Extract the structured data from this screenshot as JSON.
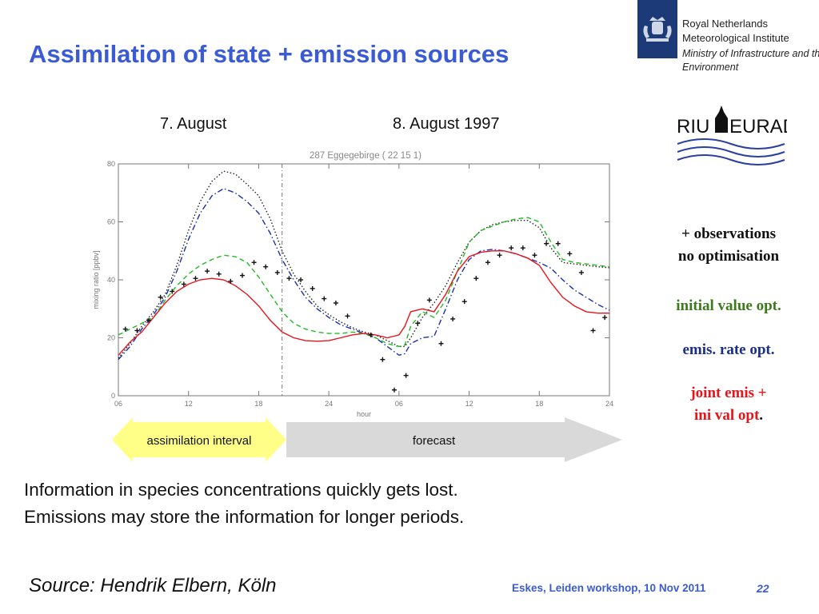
{
  "slide": {
    "title": "Assimilation of state + emission sources",
    "org_lines": [
      "Royal Netherlands",
      "Meteorological Institute"
    ],
    "ministry_lines": [
      "Ministry of Infrastructure and the",
      "Environment"
    ],
    "riu_logo_text": "RIU EURAD",
    "day_label_1": "7. August",
    "day_label_2": "8. August 1997",
    "arrow_assim": "assimilation interval",
    "arrow_forecast": "forecast",
    "body_line_1": "Information in species concentrations quickly gets lost.",
    "body_line_2": "Emissions may store the information for longer periods.",
    "source": "Source: Hendrik Elbern, Köln",
    "footer": "Eskes, Leiden workshop, 10 Nov 2011",
    "page": "22",
    "colors": {
      "accent": "#3a5bd3",
      "knmi_navy": "#1c3a78"
    }
  },
  "legend": {
    "obs_line_1": "+ observations",
    "obs_line_2": "no optimisation",
    "initial": "initial value opt.",
    "emis": "emis. rate opt.",
    "joint_1": "joint emis +",
    "joint_2": "ini val opt",
    "joint_dot": ".",
    "colors": {
      "obs": "#000000",
      "initial": "#3d7a1e",
      "emis": "#1a2f8a",
      "joint": "#e8141b"
    }
  },
  "chart_data": {
    "type": "line",
    "title": "287 Eggegebirge ( 22 15 1)",
    "xlabel": "hour",
    "ylabel": "mixing ratio [ppbv]",
    "xlim": [
      0,
      42
    ],
    "ylim": [
      0,
      80
    ],
    "x_ticks": [
      0,
      6,
      12,
      18,
      24,
      30,
      36,
      42
    ],
    "x_tick_labels": [
      "06",
      "12",
      "18",
      "24",
      "06",
      "12",
      "18",
      "24"
    ],
    "y_ticks": [
      0,
      20,
      40,
      60,
      80
    ],
    "y_tick_labels": [
      "0",
      "20",
      "40",
      "60",
      "80"
    ],
    "assimilation_end": 14,
    "series": [
      {
        "style": "dotted",
        "color": "#222222",
        "points": [
          [
            0,
            13
          ],
          [
            1,
            18
          ],
          [
            2,
            24
          ],
          [
            3,
            29
          ],
          [
            4,
            35
          ],
          [
            5,
            45
          ],
          [
            6,
            57
          ],
          [
            7,
            67
          ],
          [
            8,
            74
          ],
          [
            9,
            77.5
          ],
          [
            10,
            76.5
          ],
          [
            11,
            73
          ],
          [
            12,
            69
          ],
          [
            13,
            61
          ],
          [
            14,
            50
          ],
          [
            15,
            42
          ],
          [
            16,
            36
          ],
          [
            17,
            31
          ],
          [
            18,
            28
          ],
          [
            19,
            25.5
          ],
          [
            20,
            23.5
          ],
          [
            21,
            22
          ],
          [
            22,
            21
          ],
          [
            23,
            19
          ],
          [
            24,
            17
          ],
          [
            24.5,
            17
          ],
          [
            25,
            20
          ],
          [
            26,
            27
          ],
          [
            27,
            32
          ],
          [
            28,
            38
          ],
          [
            29,
            46
          ],
          [
            30,
            53
          ],
          [
            31,
            57
          ],
          [
            32,
            59
          ],
          [
            33,
            60
          ],
          [
            34,
            60.5
          ],
          [
            35,
            60.5
          ],
          [
            36,
            58
          ],
          [
            37,
            51
          ],
          [
            38,
            46
          ],
          [
            39,
            45.5
          ],
          [
            40,
            45
          ],
          [
            41,
            44.5
          ],
          [
            42,
            44.2
          ]
        ]
      },
      {
        "style": "dashdot",
        "color": "#1a2fb0",
        "points": [
          [
            0,
            12.5
          ],
          [
            1,
            17
          ],
          [
            2,
            23
          ],
          [
            3,
            28
          ],
          [
            4,
            34
          ],
          [
            5,
            43
          ],
          [
            6,
            54
          ],
          [
            7,
            63
          ],
          [
            8,
            69
          ],
          [
            9,
            71.5
          ],
          [
            10,
            70
          ],
          [
            11,
            67
          ],
          [
            12,
            63
          ],
          [
            13,
            56
          ],
          [
            14,
            47
          ],
          [
            15,
            40
          ],
          [
            16,
            34
          ],
          [
            17,
            30
          ],
          [
            18,
            27
          ],
          [
            19,
            24.5
          ],
          [
            20,
            23
          ],
          [
            21,
            21.5
          ],
          [
            22,
            20
          ],
          [
            23,
            17
          ],
          [
            24,
            14
          ],
          [
            24.5,
            14.5
          ],
          [
            25,
            18
          ],
          [
            26,
            20
          ],
          [
            27,
            20.5
          ],
          [
            28,
            30
          ],
          [
            29,
            40
          ],
          [
            30,
            47
          ],
          [
            31,
            50
          ],
          [
            32,
            50.5
          ],
          [
            33,
            50
          ],
          [
            34,
            49
          ],
          [
            35,
            47.5
          ],
          [
            36,
            46
          ],
          [
            37,
            44
          ],
          [
            38,
            40
          ],
          [
            39,
            36.5
          ],
          [
            40,
            34
          ],
          [
            41,
            31.5
          ],
          [
            42,
            29.5
          ]
        ]
      },
      {
        "style": "dashed",
        "color": "#22bb22",
        "points": [
          [
            0,
            21
          ],
          [
            1,
            23
          ],
          [
            2,
            25
          ],
          [
            3,
            27
          ],
          [
            4,
            33
          ],
          [
            5,
            38
          ],
          [
            6,
            42
          ],
          [
            7,
            45
          ],
          [
            8,
            47
          ],
          [
            9,
            48.5
          ],
          [
            10,
            48
          ],
          [
            11,
            46
          ],
          [
            12,
            41
          ],
          [
            13,
            35
          ],
          [
            14,
            29
          ],
          [
            15,
            25
          ],
          [
            16,
            23
          ],
          [
            17,
            22
          ],
          [
            18,
            21.5
          ],
          [
            19,
            21.5
          ],
          [
            20,
            22
          ],
          [
            21,
            21.5
          ],
          [
            22,
            20
          ],
          [
            23,
            18
          ],
          [
            24,
            17
          ],
          [
            24.5,
            17.5
          ],
          [
            25,
            24
          ],
          [
            26,
            29
          ],
          [
            27,
            27
          ],
          [
            28,
            33
          ],
          [
            29,
            43
          ],
          [
            30,
            53
          ],
          [
            31,
            57
          ],
          [
            32,
            58.5
          ],
          [
            33,
            60
          ],
          [
            34,
            61
          ],
          [
            35,
            61.5
          ],
          [
            36,
            60
          ],
          [
            37,
            53
          ],
          [
            38,
            47
          ],
          [
            39,
            46
          ],
          [
            40,
            45.5
          ],
          [
            41,
            45
          ],
          [
            42,
            44.5
          ]
        ]
      },
      {
        "style": "solid",
        "color": "#e8141b",
        "points": [
          [
            0,
            14
          ],
          [
            1,
            18.5
          ],
          [
            2,
            22
          ],
          [
            3,
            27
          ],
          [
            4,
            32
          ],
          [
            5,
            36
          ],
          [
            6,
            38.5
          ],
          [
            7,
            40
          ],
          [
            8,
            40.5
          ],
          [
            9,
            40
          ],
          [
            10,
            38
          ],
          [
            11,
            35
          ],
          [
            12,
            31
          ],
          [
            13,
            26
          ],
          [
            14,
            22
          ],
          [
            15,
            20
          ],
          [
            16,
            19
          ],
          [
            17,
            18.8
          ],
          [
            18,
            19
          ],
          [
            19,
            20
          ],
          [
            20,
            21
          ],
          [
            21,
            21.5
          ],
          [
            22,
            21
          ],
          [
            23,
            20
          ],
          [
            24,
            21
          ],
          [
            24.5,
            24
          ],
          [
            25,
            29
          ],
          [
            26,
            30
          ],
          [
            27,
            29
          ],
          [
            28,
            35
          ],
          [
            29,
            43
          ],
          [
            30,
            48
          ],
          [
            31,
            49.5
          ],
          [
            32,
            50
          ],
          [
            33,
            50
          ],
          [
            34,
            49
          ],
          [
            35,
            47.5
          ],
          [
            36,
            45
          ],
          [
            37,
            39
          ],
          [
            38,
            34
          ],
          [
            39,
            31
          ],
          [
            40,
            29
          ],
          [
            41,
            28.5
          ],
          [
            42,
            28.5
          ]
        ]
      }
    ],
    "observations": [
      [
        0.6,
        23
      ],
      [
        1.6,
        22.5
      ],
      [
        2.6,
        26
      ],
      [
        3.6,
        34
      ],
      [
        4.6,
        36
      ],
      [
        5.6,
        38.5
      ],
      [
        6.6,
        40.5
      ],
      [
        7.6,
        43
      ],
      [
        8.6,
        42
      ],
      [
        9.6,
        39.5
      ],
      [
        10.6,
        41.5
      ],
      [
        11.6,
        46
      ],
      [
        12.6,
        44.5
      ],
      [
        13.6,
        42.5
      ],
      [
        14.6,
        40.5
      ],
      [
        15.6,
        40
      ],
      [
        16.6,
        37
      ],
      [
        17.6,
        33.5
      ],
      [
        18.6,
        32
      ],
      [
        19.6,
        27.5
      ],
      [
        21.6,
        21
      ],
      [
        22.6,
        12.5
      ],
      [
        23.6,
        2
      ],
      [
        24.6,
        7
      ],
      [
        25.6,
        25
      ],
      [
        26.6,
        33
      ],
      [
        27.6,
        18
      ],
      [
        28.6,
        26.5
      ],
      [
        29.6,
        32.5
      ],
      [
        30.6,
        40.5
      ],
      [
        31.6,
        46
      ],
      [
        32.6,
        48.5
      ],
      [
        33.6,
        51
      ],
      [
        34.6,
        51
      ],
      [
        35.6,
        48.5
      ],
      [
        36.6,
        52.5
      ],
      [
        37.6,
        52.5
      ],
      [
        38.6,
        49
      ],
      [
        39.6,
        42.5
      ],
      [
        40.6,
        22.5
      ],
      [
        41.6,
        27
      ]
    ]
  }
}
